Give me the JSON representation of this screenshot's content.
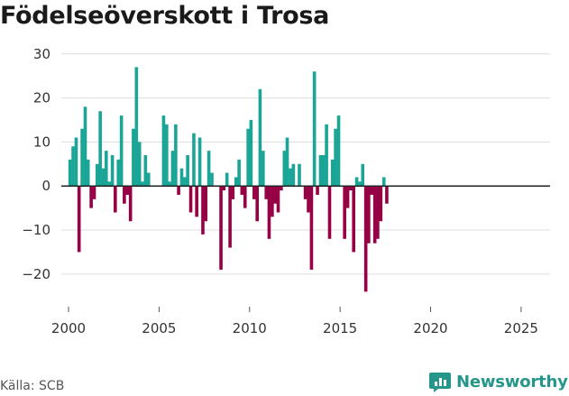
{
  "chart_data": {
    "type": "bar",
    "title": "Födelseöverskott i Trosa",
    "xlabel": "",
    "ylabel": "",
    "ylim": [
      -27,
      32
    ],
    "yticks": [
      30,
      20,
      10,
      0,
      -10,
      -20
    ],
    "ytick_labels": [
      "30",
      "20",
      "10",
      "0",
      "−10",
      "−20"
    ],
    "xticks": [
      2000,
      2005,
      2010,
      2015,
      2020,
      2025
    ],
    "xtick_labels": [
      "2000",
      "2005",
      "2010",
      "2015",
      "2020",
      "2025"
    ],
    "xlim": [
      1999.6,
      2026.6
    ],
    "positive_color": "#1aa597",
    "negative_color": "#960044",
    "points": [
      {
        "t": 2000.08,
        "v": 6
      },
      {
        "t": 2000.25,
        "v": 9
      },
      {
        "t": 2000.42,
        "v": 11
      },
      {
        "t": 2000.58,
        "v": -15
      },
      {
        "t": 2000.75,
        "v": 13
      },
      {
        "t": 2000.92,
        "v": 18
      },
      {
        "t": 2001.08,
        "v": 6
      },
      {
        "t": 2001.25,
        "v": -5
      },
      {
        "t": 2001.42,
        "v": -3
      },
      {
        "t": 2001.58,
        "v": 5
      },
      {
        "t": 2001.75,
        "v": 17
      },
      {
        "t": 2001.92,
        "v": 4
      },
      {
        "t": 2002.08,
        "v": 8
      },
      {
        "t": 2002.25,
        "v": 1
      },
      {
        "t": 2002.42,
        "v": 7
      },
      {
        "t": 2002.58,
        "v": -6
      },
      {
        "t": 2002.75,
        "v": 6
      },
      {
        "t": 2002.92,
        "v": 16
      },
      {
        "t": 2003.08,
        "v": -4
      },
      {
        "t": 2003.25,
        "v": -2
      },
      {
        "t": 2003.42,
        "v": -8
      },
      {
        "t": 2003.58,
        "v": 13
      },
      {
        "t": 2003.75,
        "v": 27
      },
      {
        "t": 2003.92,
        "v": 10
      },
      {
        "t": 2004.08,
        "v": 1
      },
      {
        "t": 2004.25,
        "v": 7
      },
      {
        "t": 2004.42,
        "v": 3
      },
      {
        "t": 2005.25,
        "v": 16
      },
      {
        "t": 2005.42,
        "v": 14
      },
      {
        "t": 2005.58,
        "v": 1
      },
      {
        "t": 2005.75,
        "v": 8
      },
      {
        "t": 2005.92,
        "v": 14
      },
      {
        "t": 2006.08,
        "v": -2
      },
      {
        "t": 2006.25,
        "v": 4
      },
      {
        "t": 2006.42,
        "v": 2
      },
      {
        "t": 2006.58,
        "v": 7
      },
      {
        "t": 2006.75,
        "v": -6
      },
      {
        "t": 2006.92,
        "v": 12
      },
      {
        "t": 2007.08,
        "v": -7
      },
      {
        "t": 2007.25,
        "v": 11
      },
      {
        "t": 2007.42,
        "v": -11
      },
      {
        "t": 2007.58,
        "v": -8
      },
      {
        "t": 2007.75,
        "v": 8
      },
      {
        "t": 2007.92,
        "v": 3
      },
      {
        "t": 2008.42,
        "v": -19
      },
      {
        "t": 2008.58,
        "v": -1
      },
      {
        "t": 2008.75,
        "v": 3
      },
      {
        "t": 2008.92,
        "v": -14
      },
      {
        "t": 2009.08,
        "v": -3
      },
      {
        "t": 2009.25,
        "v": 2
      },
      {
        "t": 2009.42,
        "v": 6
      },
      {
        "t": 2009.58,
        "v": -2
      },
      {
        "t": 2009.75,
        "v": -5
      },
      {
        "t": 2009.92,
        "v": 13
      },
      {
        "t": 2010.08,
        "v": 15
      },
      {
        "t": 2010.25,
        "v": -3
      },
      {
        "t": 2010.42,
        "v": -8
      },
      {
        "t": 2010.58,
        "v": 22
      },
      {
        "t": 2010.75,
        "v": 8
      },
      {
        "t": 2010.92,
        "v": -3
      },
      {
        "t": 2011.08,
        "v": -12
      },
      {
        "t": 2011.25,
        "v": -7
      },
      {
        "t": 2011.42,
        "v": -4
      },
      {
        "t": 2011.58,
        "v": -6
      },
      {
        "t": 2011.75,
        "v": -1
      },
      {
        "t": 2011.92,
        "v": 8
      },
      {
        "t": 2012.08,
        "v": 11
      },
      {
        "t": 2012.25,
        "v": 4
      },
      {
        "t": 2012.42,
        "v": 5
      },
      {
        "t": 2012.75,
        "v": 5
      },
      {
        "t": 2013.08,
        "v": -3
      },
      {
        "t": 2013.25,
        "v": -6
      },
      {
        "t": 2013.42,
        "v": -19
      },
      {
        "t": 2013.58,
        "v": 26
      },
      {
        "t": 2013.75,
        "v": -2
      },
      {
        "t": 2013.92,
        "v": 7
      },
      {
        "t": 2014.08,
        "v": 7
      },
      {
        "t": 2014.25,
        "v": 14
      },
      {
        "t": 2014.42,
        "v": -12
      },
      {
        "t": 2014.58,
        "v": 6
      },
      {
        "t": 2014.75,
        "v": 13
      },
      {
        "t": 2014.92,
        "v": 16
      },
      {
        "t": 2015.25,
        "v": -12
      },
      {
        "t": 2015.42,
        "v": -5
      },
      {
        "t": 2015.58,
        "v": -1
      },
      {
        "t": 2015.75,
        "v": -15
      },
      {
        "t": 2015.92,
        "v": 2
      },
      {
        "t": 2016.08,
        "v": 1
      },
      {
        "t": 2016.25,
        "v": 5
      },
      {
        "t": 2016.42,
        "v": -24
      },
      {
        "t": 2016.58,
        "v": -13
      },
      {
        "t": 2016.75,
        "v": -2
      },
      {
        "t": 2016.92,
        "v": -13
      },
      {
        "t": 2017.08,
        "v": -12
      },
      {
        "t": 2017.25,
        "v": -8
      },
      {
        "t": 2017.42,
        "v": 2
      },
      {
        "t": 2017.58,
        "v": -4
      }
    ]
  },
  "source": "Källa: SCB",
  "brand": "Newsworthy"
}
